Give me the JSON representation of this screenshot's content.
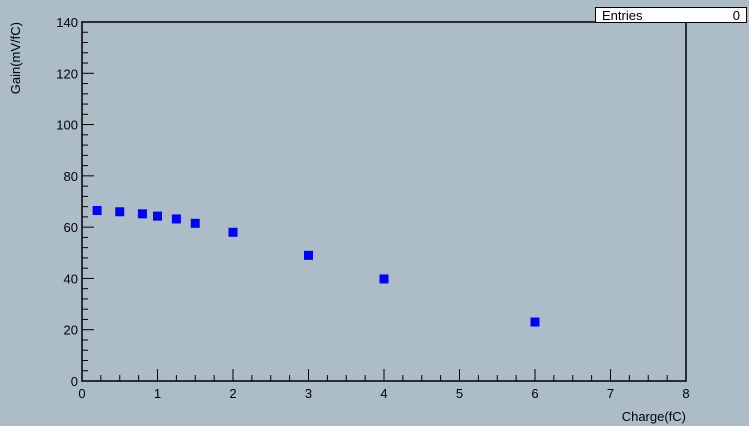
{
  "chart_data": {
    "type": "scatter",
    "title": "",
    "xlabel": "Charge(fC)",
    "ylabel": "Gain(mV/fC)",
    "xlim": [
      0,
      8
    ],
    "ylim": [
      0,
      140
    ],
    "x_ticks": [
      "0",
      "1",
      "2",
      "3",
      "4",
      "5",
      "6",
      "7",
      "8"
    ],
    "y_ticks": [
      "0",
      "20",
      "40",
      "60",
      "80",
      "100",
      "120",
      "140"
    ],
    "grid": false,
    "marker_color": "#0000ff",
    "series": [
      {
        "x": [
          0.2,
          0.5,
          0.8,
          1.0,
          1.25,
          1.5,
          2.0,
          3.0,
          4.0,
          6.0
        ],
        "y": [
          66.5,
          66.0,
          65.2,
          64.3,
          63.2,
          61.5,
          58.0,
          49.0,
          39.8,
          23.0
        ]
      }
    ]
  },
  "stats": {
    "label": "Entries",
    "value": "0"
  }
}
